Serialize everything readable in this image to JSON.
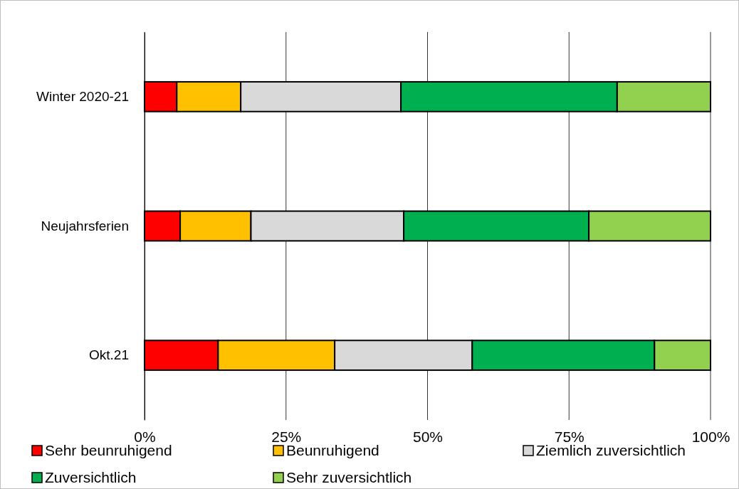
{
  "chart_data": {
    "type": "bar",
    "orientation": "horizontal",
    "stacked": true,
    "categories": [
      "Winter 2020-21",
      "Neujahrsferien",
      "Okt.21"
    ],
    "series": [
      {
        "name": "Sehr beunruhigend",
        "color": "#ff0000",
        "values": [
          5.7,
          6.3,
          13.0
        ]
      },
      {
        "name": "Beunruhigend",
        "color": "#ffc000",
        "values": [
          11.3,
          12.5,
          20.6
        ]
      },
      {
        "name": "Ziemlich zuversichtlich",
        "color": "#d9d9d9",
        "values": [
          28.3,
          27.0,
          24.3
        ]
      },
      {
        "name": "Zuversichtlich",
        "color": "#00b050",
        "values": [
          38.2,
          32.7,
          32.2
        ]
      },
      {
        "name": "Sehr zuversichtlich",
        "color": "#92d050",
        "values": [
          16.5,
          21.5,
          9.9
        ]
      }
    ],
    "xlim": [
      0,
      100
    ],
    "xticks": [
      {
        "value": 0,
        "label": "0%"
      },
      {
        "value": 25,
        "label": "25%"
      },
      {
        "value": 50,
        "label": "50%"
      },
      {
        "value": 75,
        "label": "75%"
      },
      {
        "value": 100,
        "label": "100%"
      }
    ],
    "grid": "x",
    "legend": "bottom"
  }
}
